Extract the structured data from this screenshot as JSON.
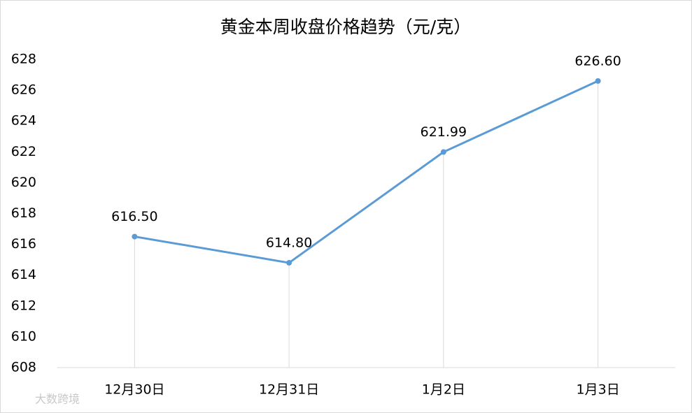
{
  "chart_data": {
    "type": "line",
    "title": "黄金本周收盘价格趋势（元/克）",
    "categories": [
      "12月30日",
      "12月31日",
      "1月2日",
      "1月3日"
    ],
    "values": [
      616.5,
      614.8,
      621.99,
      626.6
    ],
    "value_labels": [
      "616.50",
      "614.80",
      "621.99",
      "626.60"
    ],
    "color": "#5b9bd5",
    "ylim": [
      608,
      628
    ],
    "yticks": [
      608,
      610,
      612,
      614,
      616,
      618,
      620,
      622,
      624,
      626,
      628
    ],
    "grid": false,
    "drop_lines": true
  },
  "watermark": "大数跨境"
}
